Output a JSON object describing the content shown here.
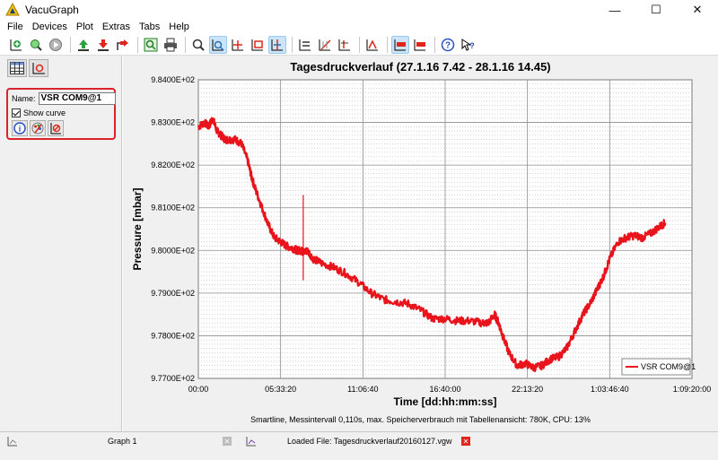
{
  "window": {
    "title": "VacuGraph",
    "controls": {
      "minimize": "—",
      "maximize": "☐",
      "close": "✕"
    }
  },
  "menu": [
    "File",
    "Devices",
    "Plot",
    "Extras",
    "Tabs",
    "Help"
  ],
  "toolbar": {
    "icons": [
      "add-curve-icon",
      "search-curve-icon",
      "play-icon",
      "upload-icon",
      "download-icon",
      "export-icon",
      "zoom-fit-icon",
      "print-icon",
      "zoom-icon",
      "zoom-box-icon",
      "move-icon",
      "crop-icon",
      "cursor-icon",
      "align-icon",
      "no-grid-icon",
      "axis-icon",
      "marker-icon",
      "linear-scale-icon",
      "log-scale-icon",
      "help-icon",
      "whats-this-icon"
    ],
    "active": [
      "zoom-box-icon",
      "cursor-icon",
      "linear-scale-icon"
    ]
  },
  "left_panel": {
    "name_label": "Name:",
    "name_value": "VSR COM9@1",
    "show_curve_label": "Show curve",
    "show_curve_checked": true
  },
  "status_text": "Smartline, Messintervall 0,110s, max. Speicherverbrauch mit Tabellenansicht: 780K, CPU: 13%",
  "tabs": [
    {
      "label": "Graph 1"
    },
    {
      "label": "Loaded File:  Tagesdruckverlauf20160127.vgw"
    }
  ],
  "colors": {
    "curve": "#e8131b",
    "accent": "#d9222a",
    "highlight": "#cce4f7"
  },
  "chart_data": {
    "type": "line",
    "title": "Tagesdruckverlauf (27.1.16 7.42 - 28.1.16 14.45)",
    "xlabel": "Time [dd:hh:mm:ss]",
    "ylabel": "Pressure [mbar]",
    "xtick_labels": [
      "00:00",
      "05:33:20",
      "11:06:40",
      "16:40:00",
      "22:13:20",
      "1:03:46:40",
      "1:09:20:00"
    ],
    "ytick_labels": [
      "9.7700E+02",
      "9.7800E+02",
      "9.7900E+02",
      "9.8000E+02",
      "9.8100E+02",
      "9.8200E+02",
      "9.8300E+02",
      "9.8400E+02"
    ],
    "x_unit": "seconds",
    "xlim": [
      0,
      120000
    ],
    "ylim": [
      977.0,
      984.0
    ],
    "grid": true,
    "legend_position": "bottom-right",
    "series": [
      {
        "name": "VSR COM9@1",
        "color": "#e8131b",
        "x": [
          0,
          1500,
          2500,
          3500,
          4500,
          5500,
          6500,
          7500,
          9000,
          10500,
          12000,
          13000,
          14000,
          15500,
          17000,
          18500,
          20000,
          21500,
          23000,
          24000,
          25000,
          25600,
          26500,
          28000,
          30000,
          33000,
          36000,
          39000,
          42000,
          45000,
          48000,
          51000,
          54000,
          57000,
          60000,
          63000,
          66000,
          69000,
          70500,
          72000,
          73000,
          74000,
          75500,
          77500,
          79500,
          81500,
          83500,
          85500,
          87500,
          89500,
          91500,
          93500,
          95500,
          97000,
          98500,
          100000,
          102000,
          104000,
          106000,
          108000,
          110000,
          112000,
          113500
        ],
        "y": [
          982.9,
          983.0,
          982.9,
          983.1,
          982.8,
          982.7,
          982.6,
          982.6,
          982.6,
          982.5,
          982.1,
          981.7,
          981.4,
          981.0,
          980.6,
          980.3,
          980.2,
          980.1,
          980.05,
          980.0,
          980.0,
          979.95,
          980.0,
          979.8,
          979.7,
          979.6,
          979.45,
          979.25,
          979.0,
          978.85,
          978.8,
          978.75,
          978.6,
          978.4,
          978.4,
          978.35,
          978.35,
          978.3,
          978.3,
          978.5,
          978.3,
          978.0,
          977.6,
          977.3,
          977.35,
          977.25,
          977.3,
          977.45,
          977.5,
          977.7,
          978.1,
          978.5,
          978.8,
          979.1,
          979.4,
          979.8,
          980.2,
          980.3,
          980.35,
          980.3,
          980.4,
          980.55,
          980.65
        ]
      }
    ],
    "annotations": [
      {
        "x": 25500,
        "y_range": [
          979.3,
          981.3
        ],
        "type": "spike"
      }
    ]
  }
}
